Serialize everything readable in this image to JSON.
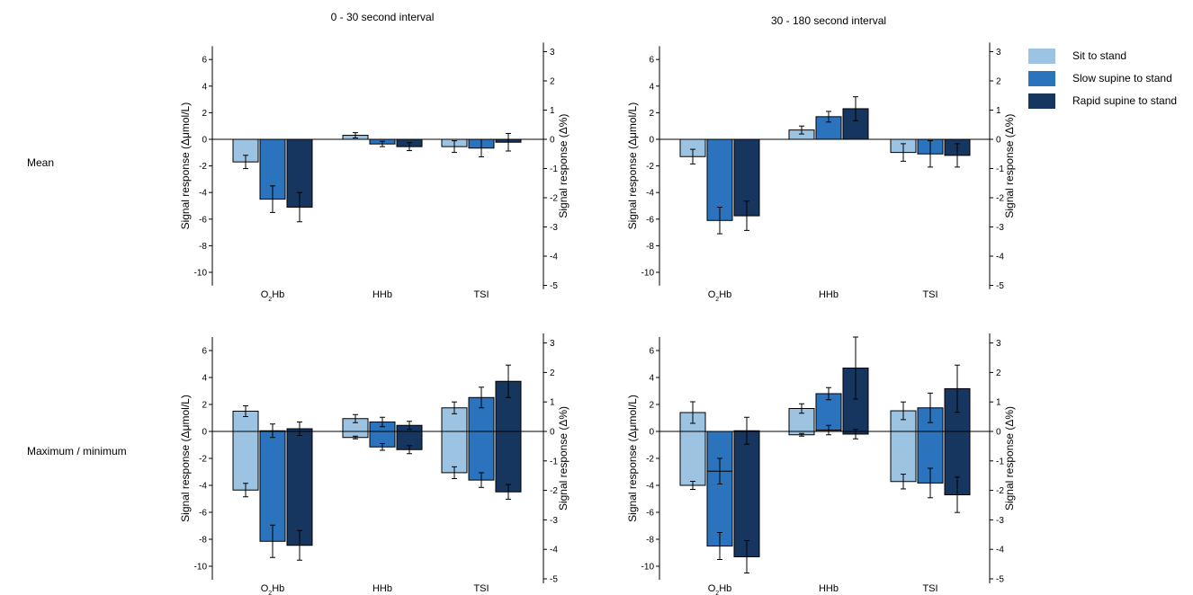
{
  "column_titles": [
    "0 - 30 second interval",
    "30 - 180 second interval"
  ],
  "row_labels": [
    "Mean",
    "Maximum / minimum"
  ],
  "legend": [
    {
      "label": "Sit to stand",
      "color": "#9dc3e2"
    },
    {
      "label": "Slow supine to stand",
      "color": "#2c73bd"
    },
    {
      "label": "Rapid supine to stand",
      "color": "#17365f"
    }
  ],
  "chart_data": [
    {
      "type": "bar",
      "title": "0 - 30 second interval",
      "row": "Mean",
      "categories": [
        "O₂Hb",
        "HHb",
        "TSI"
      ],
      "ylabel": "Signal response (Δμmol/L)",
      "ylabel_right": "Signal response (Δ%)",
      "ylim": [
        -11,
        7
      ],
      "ylim_right": [
        -5,
        3.1
      ],
      "yticks": [
        6,
        4,
        2,
        0,
        -2,
        -4,
        -6,
        -8,
        -10
      ],
      "yticks_right": [
        3,
        2,
        1,
        0,
        -1,
        -2,
        -3,
        -4,
        -5
      ],
      "series": [
        {
          "name": "Sit to stand",
          "values": [
            -1.7,
            0.3,
            -0.25
          ],
          "errors": [
            0.5,
            0.2,
            0.2
          ]
        },
        {
          "name": "Slow supine to stand",
          "values": [
            -4.5,
            -0.35,
            -0.3
          ],
          "errors": [
            1.0,
            0.2,
            0.3
          ]
        },
        {
          "name": "Rapid supine to stand",
          "values": [
            -5.1,
            -0.55,
            -0.1
          ],
          "errors": [
            1.1,
            0.3,
            0.3
          ]
        }
      ]
    },
    {
      "type": "bar",
      "title": "30 - 180 second interval",
      "row": "Mean",
      "categories": [
        "O₂Hb",
        "HHb",
        "TSI"
      ],
      "ylabel": "Signal response (Δμmol/L)",
      "ylabel_right": "Signal response (Δ%)",
      "ylim": [
        -11,
        7
      ],
      "ylim_right": [
        -5,
        3.1
      ],
      "yticks": [
        6,
        4,
        2,
        0,
        -2,
        -4,
        -6,
        -8,
        -10
      ],
      "yticks_right": [
        3,
        2,
        1,
        0,
        -1,
        -2,
        -3,
        -4,
        -5
      ],
      "series": [
        {
          "name": "Sit to stand",
          "values": [
            -1.3,
            0.7,
            -0.45
          ],
          "errors": [
            0.55,
            0.3,
            0.3
          ]
        },
        {
          "name": "Slow supine to stand",
          "values": [
            -6.1,
            1.7,
            -0.5
          ],
          "errors": [
            1.0,
            0.4,
            0.45
          ]
        },
        {
          "name": "Rapid supine to stand",
          "values": [
            -5.75,
            2.3,
            -0.55
          ],
          "errors": [
            1.1,
            0.9,
            0.4
          ]
        }
      ]
    },
    {
      "type": "bar",
      "title": "0 - 30 second interval",
      "row": "Maximum / minimum",
      "categories": [
        "O₂Hb",
        "HHb",
        "TSI"
      ],
      "ylabel": "Signal response (Δμmol/L)",
      "ylabel_right": "Signal response (Δ%)",
      "ylim": [
        -11,
        7
      ],
      "ylim_right": [
        -5,
        3.1
      ],
      "yticks": [
        6,
        4,
        2,
        0,
        -2,
        -4,
        -6,
        -8,
        -10
      ],
      "yticks_right": [
        3,
        2,
        1,
        0,
        -1,
        -2,
        -3,
        -4,
        -5
      ],
      "series": [
        {
          "name": "Sit to stand",
          "max": [
            1.5,
            0.95,
            0.8
          ],
          "min": [
            -4.35,
            -0.45,
            -1.4
          ],
          "max_err": [
            0.4,
            0.3,
            0.2
          ],
          "min_err": [
            0.5,
            0.1,
            0.2
          ]
        },
        {
          "name": "Slow supine to stand",
          "max": [
            0.05,
            0.7,
            1.15
          ],
          "min": [
            -8.15,
            -1.15,
            -1.65
          ],
          "max_err": [
            0.5,
            0.35,
            0.35
          ],
          "min_err": [
            1.2,
            0.25,
            0.25
          ]
        },
        {
          "name": "Rapid supine to stand",
          "max": [
            0.2,
            0.45,
            1.7
          ],
          "min": [
            -8.45,
            -1.35,
            -2.05
          ],
          "max_err": [
            0.5,
            0.3,
            0.55
          ],
          "min_err": [
            1.1,
            0.3,
            0.25
          ]
        }
      ]
    },
    {
      "type": "bar",
      "title": "30 - 180 second interval",
      "row": "Maximum / minimum",
      "categories": [
        "O₂Hb",
        "HHb",
        "TSI"
      ],
      "ylabel": "Signal response (Δμmol/L)",
      "ylabel_right": "Signal response (Δ%)",
      "ylim": [
        -11,
        7
      ],
      "ylim_right": [
        -5,
        3.1
      ],
      "yticks": [
        6,
        4,
        2,
        0,
        -2,
        -4,
        -6,
        -8,
        -10
      ],
      "yticks_right": [
        3,
        2,
        1,
        0,
        -1,
        -2,
        -3,
        -4,
        -5
      ],
      "series": [
        {
          "name": "Sit to stand",
          "max": [
            1.4,
            1.7,
            0.7
          ],
          "min": [
            -4.0,
            -0.25,
            -1.7
          ],
          "max_err": [
            0.8,
            0.35,
            0.3
          ],
          "min_err": [
            0.3,
            0.1,
            0.25
          ]
        },
        {
          "name": "Slow supine to stand",
          "max": [
            -2.95,
            2.8,
            0.8
          ],
          "min": [
            -8.5,
            0.1,
            -1.75
          ],
          "max_err": [
            0.95,
            0.45,
            0.5
          ],
          "min_err": [
            1.0,
            0.35,
            0.5
          ]
        },
        {
          "name": "Rapid supine to stand",
          "max": [
            0.05,
            4.7,
            1.45
          ],
          "min": [
            -9.3,
            -0.2,
            -2.15
          ],
          "max_err": [
            1.0,
            2.3,
            0.8
          ],
          "min_err": [
            1.2,
            0.35,
            0.6
          ]
        }
      ]
    }
  ]
}
